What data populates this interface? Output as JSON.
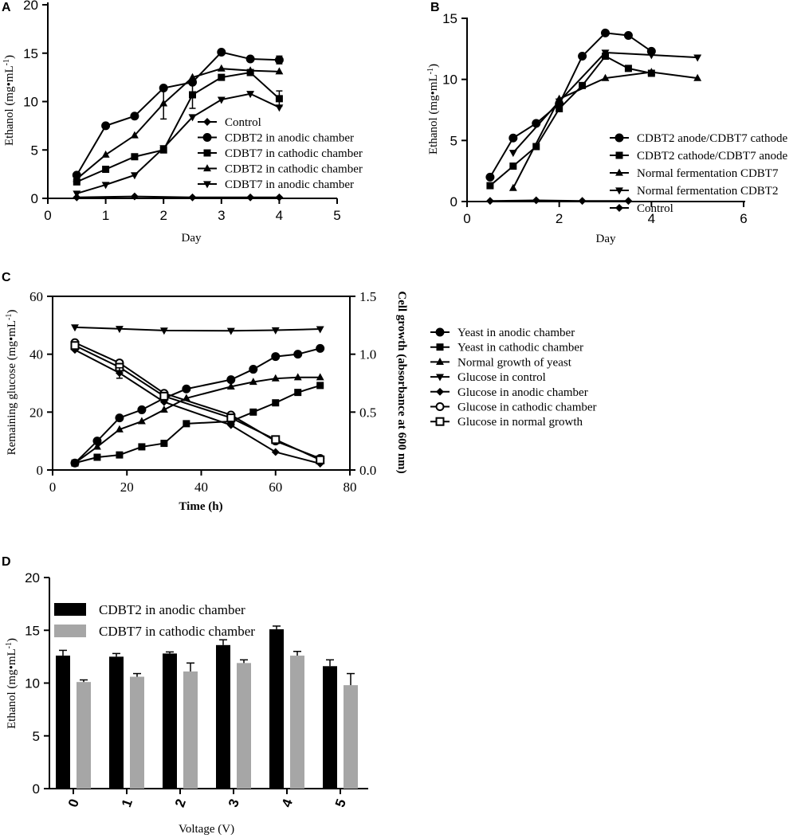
{
  "chart_data": [
    {
      "panel": "A",
      "type": "line",
      "xlabel": "Day",
      "ylabel": "Ethanol (mg•mL",
      "ylabel_sup": "-1",
      "ylabel_end": ")",
      "xlim": [
        0,
        5
      ],
      "ylim": [
        0,
        20
      ],
      "xticks": [
        0,
        1,
        2,
        3,
        4,
        5
      ],
      "yticks": [
        0,
        5,
        10,
        15,
        20
      ],
      "legend_position": "bottom-right",
      "series": [
        {
          "name": "Control",
          "marker": "diamond",
          "x": [
            0.5,
            1.5,
            2.5,
            3.5,
            4
          ],
          "y": [
            0.1,
            0.2,
            0.1,
            0.1,
            0.1
          ]
        },
        {
          "name": "CDBT2 in anodic chamber",
          "marker": "circle",
          "x": [
            0.5,
            1,
            1.5,
            2,
            2.5,
            3,
            3.5,
            4
          ],
          "y": [
            2.4,
            7.5,
            8.5,
            11.4,
            12.0,
            15.1,
            14.4,
            14.3
          ]
        },
        {
          "name": "CDBT7 in cathodic chamber",
          "marker": "square",
          "x": [
            0.5,
            1,
            1.5,
            2,
            2.5,
            3,
            3.5,
            4
          ],
          "y": [
            1.7,
            3.0,
            4.3,
            5.0,
            10.7,
            12.5,
            13.0,
            10.3
          ]
        },
        {
          "name": "CDBT2 in cathodic chamber",
          "marker": "triangle-up",
          "x": [
            0.5,
            1,
            1.5,
            2,
            2.5,
            3,
            3.5,
            4
          ],
          "y": [
            2.0,
            4.5,
            6.5,
            9.8,
            12.5,
            13.4,
            13.2,
            13.1
          ]
        },
        {
          "name": "CDBT7 in anodic chamber",
          "marker": "triangle-down",
          "x": [
            0.5,
            1,
            1.5,
            2,
            2.5,
            3,
            3.5,
            4
          ],
          "y": [
            0.5,
            1.4,
            2.4,
            5.2,
            8.4,
            10.2,
            10.8,
            9.4
          ]
        }
      ]
    },
    {
      "panel": "B",
      "type": "line",
      "xlabel": "Day",
      "ylabel": "Ethanol (mg•mL",
      "ylabel_sup": "-1",
      "ylabel_end": ")",
      "xlim": [
        0,
        6
      ],
      "ylim": [
        0,
        15
      ],
      "xticks": [
        0,
        2,
        4,
        6
      ],
      "yticks": [
        0,
        5,
        10,
        15
      ],
      "legend_position": "right",
      "series": [
        {
          "name": "CDBT2 anode/CDBT7 cathode",
          "marker": "circle",
          "x": [
            0.5,
            1,
            1.5,
            2,
            2.5,
            3,
            3.5,
            4
          ],
          "y": [
            2.0,
            5.2,
            6.4,
            8.0,
            11.9,
            13.8,
            13.6,
            12.3
          ]
        },
        {
          "name": "CDBT2 cathode/CDBT7 anode",
          "marker": "square",
          "x": [
            0.5,
            1,
            1.5,
            2,
            2.5,
            3,
            3.5,
            4
          ],
          "y": [
            1.3,
            2.9,
            4.5,
            7.6,
            9.5,
            11.9,
            10.9,
            10.5
          ]
        },
        {
          "name": "Normal fermentation CDBT7",
          "marker": "triangle-up",
          "x": [
            1,
            2,
            3,
            4,
            5
          ],
          "y": [
            1.1,
            8.4,
            10.1,
            10.6,
            10.1
          ]
        },
        {
          "name": "Normal fermentation CDBT2",
          "marker": "triangle-down",
          "x": [
            1,
            2,
            3,
            4,
            5
          ],
          "y": [
            4.0,
            8.2,
            12.2,
            12.0,
            11.8
          ]
        },
        {
          "name": "Control",
          "marker": "diamond",
          "x": [
            0.5,
            1.5,
            2.5,
            3.5
          ],
          "y": [
            0.05,
            0.1,
            0.05,
            0.05
          ]
        }
      ]
    },
    {
      "panel": "C",
      "type": "line",
      "xlabel": "Time (h)",
      "ylabel": "Remaining glucose (mg•mL",
      "ylabel_sup": "-1",
      "ylabel_end": ")",
      "ylabel_right": "Cell growth (absorbance at 600 nm)",
      "xlim": [
        0,
        80
      ],
      "ylim": [
        0,
        60
      ],
      "ylim_right": [
        0,
        1.5
      ],
      "xticks": [
        0,
        20,
        40,
        60,
        80
      ],
      "yticks": [
        0,
        20,
        40,
        60
      ],
      "yticks_right": [
        "0.0",
        "0.5",
        "1.0",
        "1.5"
      ],
      "legend_position": "right",
      "series": [
        {
          "name": "Yeast in anodic chamber",
          "marker": "circle",
          "axis": "right",
          "x": [
            6,
            12,
            18,
            24,
            30,
            36,
            48,
            54,
            60,
            66,
            72
          ],
          "y": [
            0.06,
            0.25,
            0.45,
            0.52,
            0.62,
            0.7,
            0.78,
            0.87,
            0.98,
            1.0,
            1.05
          ]
        },
        {
          "name": "Yeast in cathodic chamber",
          "marker": "square",
          "axis": "right",
          "x": [
            6,
            12,
            18,
            24,
            30,
            36,
            48,
            54,
            60,
            66,
            72
          ],
          "y": [
            0.06,
            0.11,
            0.13,
            0.2,
            0.23,
            0.4,
            0.42,
            0.5,
            0.58,
            0.67,
            0.73
          ]
        },
        {
          "name": "Normal growth of yeast",
          "marker": "triangle-up",
          "axis": "right",
          "x": [
            6,
            12,
            18,
            24,
            30,
            36,
            48,
            54,
            60,
            66,
            72
          ],
          "y": [
            0.06,
            0.2,
            0.35,
            0.42,
            0.52,
            0.62,
            0.72,
            0.76,
            0.79,
            0.8,
            0.8
          ]
        },
        {
          "name": "Glucose in control",
          "marker": "triangle-down",
          "axis": "left",
          "x": [
            6,
            18,
            30,
            48,
            60,
            72
          ],
          "y": [
            49.3,
            48.8,
            48.2,
            48.1,
            48.3,
            48.7
          ]
        },
        {
          "name": "Glucose in anodic chamber",
          "marker": "diamond",
          "axis": "left",
          "x": [
            6,
            18,
            30,
            48,
            60,
            72
          ],
          "y": [
            41.5,
            33.5,
            23.5,
            15.5,
            6.2,
            2.2
          ]
        },
        {
          "name": "Glucose in cathodic chamber",
          "marker": "open-circle",
          "axis": "left",
          "x": [
            6,
            18,
            30,
            48,
            60,
            72
          ],
          "y": [
            44.0,
            37.0,
            26.5,
            19.0,
            10.0,
            4.0
          ]
        },
        {
          "name": "Glucose in normal growth",
          "marker": "open-square",
          "axis": "left",
          "x": [
            6,
            18,
            30,
            48,
            60,
            72
          ],
          "y": [
            43.0,
            35.5,
            25.5,
            18.0,
            10.5,
            3.5
          ]
        }
      ]
    },
    {
      "panel": "D",
      "type": "bar",
      "xlabel": "Voltage (V)",
      "ylabel": "Ethanol (mg•mL",
      "ylabel_sup": "-1",
      "ylabel_end": ")",
      "categories": [
        "0",
        "1",
        "2",
        "3",
        "4",
        "5"
      ],
      "ylim": [
        0,
        20
      ],
      "yticks": [
        0,
        5,
        10,
        15,
        20
      ],
      "legend_position": "top-left",
      "series": [
        {
          "name": "CDBT2 in anodic chamber",
          "color": "#000000",
          "values": [
            12.6,
            12.5,
            12.8,
            13.6,
            15.1,
            11.6
          ],
          "errors": [
            0.5,
            0.3,
            0.15,
            0.5,
            0.3,
            0.6
          ]
        },
        {
          "name": "CDBT7 in cathodic chamber",
          "color": "#a6a6a6",
          "values": [
            10.1,
            10.6,
            11.1,
            11.9,
            12.6,
            9.8
          ],
          "errors": [
            0.2,
            0.3,
            0.8,
            0.3,
            0.4,
            1.1
          ]
        }
      ]
    }
  ]
}
